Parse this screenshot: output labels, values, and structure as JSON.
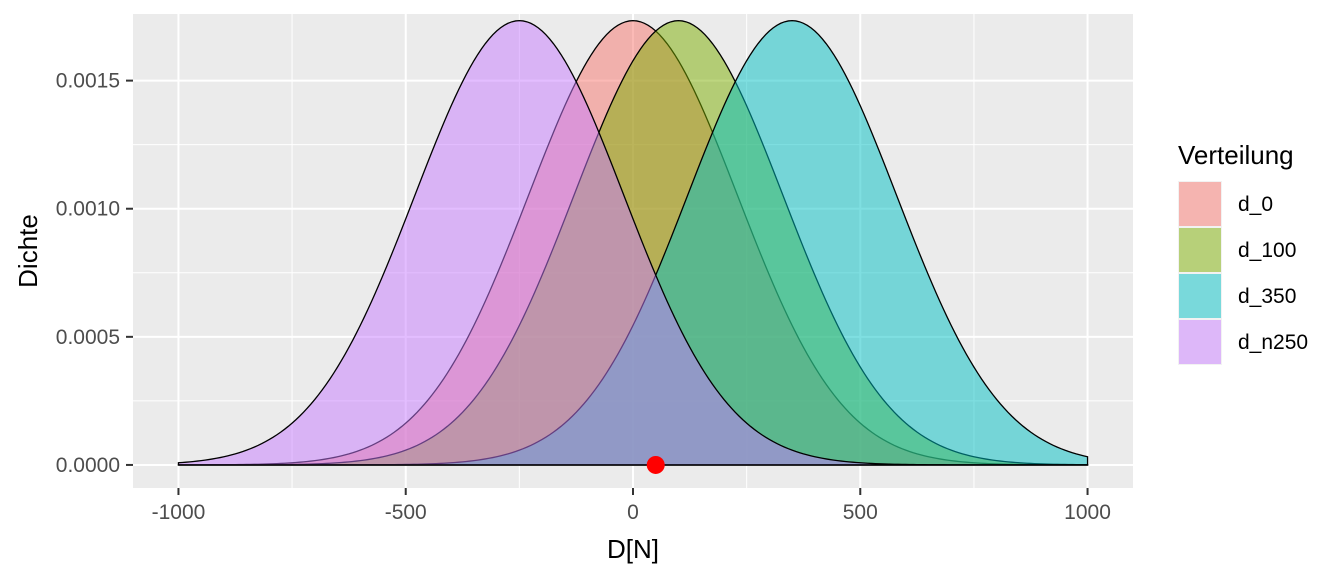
{
  "chart_data": {
    "type": "area",
    "title": "",
    "xlabel": "D[N]",
    "ylabel": "Dichte",
    "xlim": [
      -1100,
      1100
    ],
    "ylim": [
      -9e-05,
      0.00176
    ],
    "x_ticks": [
      -1000,
      -500,
      0,
      500,
      1000
    ],
    "x_tick_labels": [
      "-1000",
      "-500",
      "0",
      "500",
      "1000"
    ],
    "y_ticks": [
      0.0,
      0.0005,
      0.001,
      0.0015
    ],
    "y_tick_labels": [
      "0.0000",
      "0.0005",
      "0.0010",
      "0.0015"
    ],
    "x_range": [
      -1000,
      1000
    ],
    "grid": true,
    "legend": {
      "title": "Verteilung",
      "position": "right"
    },
    "series": [
      {
        "name": "d_0",
        "distribution": "normal",
        "mean": 0,
        "sd": 230,
        "peak_density": 0.001734,
        "color": "#F8766D"
      },
      {
        "name": "d_100",
        "distribution": "normal",
        "mean": 100,
        "sd": 230,
        "peak_density": 0.001734,
        "color": "#7CAE00"
      },
      {
        "name": "d_350",
        "distribution": "normal",
        "mean": 350,
        "sd": 230,
        "peak_density": 0.001734,
        "color": "#00BFC4"
      },
      {
        "name": "d_n250",
        "distribution": "normal",
        "mean": -250,
        "sd": 230,
        "peak_density": 0.001734,
        "color": "#C77CFF"
      }
    ],
    "fill_opacity": 0.5,
    "annotations": [
      {
        "type": "point",
        "x": 50,
        "y": 0.0,
        "color": "#FF0000"
      }
    ],
    "colors": {
      "panel": "#EBEBEB",
      "grid": "#FFFFFF",
      "outline": "#000000"
    }
  }
}
